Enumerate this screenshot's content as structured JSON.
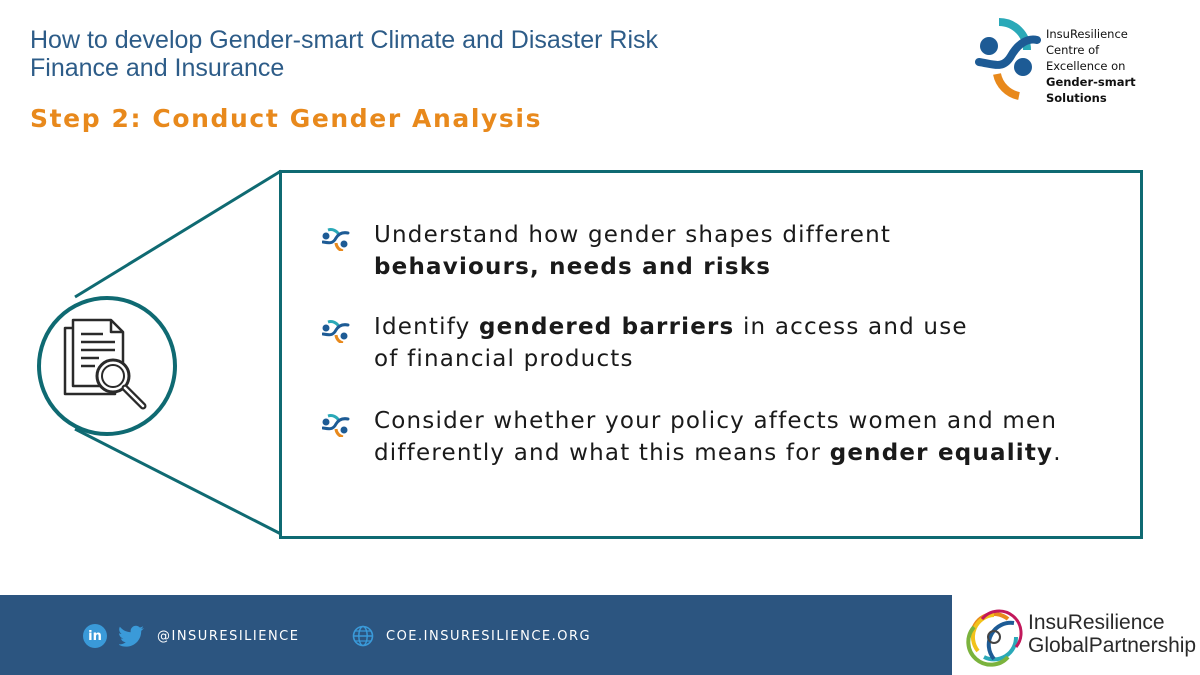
{
  "header": {
    "title_line1": "How to develop Gender-smart Climate and Disaster Risk",
    "title_line2": "Finance and Insurance",
    "step": "Step 2: Conduct Gender Analysis"
  },
  "logo_top": {
    "lines": [
      "InsuResilience",
      "Centre of",
      "Excellence on"
    ],
    "bold_lines": [
      "Gender-smart",
      "Solutions"
    ],
    "icon": "coe-logo-icon"
  },
  "illustration": {
    "icon": "document-magnifier-icon"
  },
  "bullets": [
    {
      "icon": "coe-bullet-icon",
      "line1": "Understand how gender shapes different",
      "line2_bold": "behaviours, needs and risks"
    },
    {
      "icon": "coe-bullet-icon",
      "line1_pre": "Identify ",
      "line1_bold": "gendered barriers",
      "line1_post": " in access and use",
      "line2": "of financial products"
    },
    {
      "icon": "coe-bullet-icon",
      "line1": "Consider whether your policy affects women and men",
      "line2_pre": "differently and what this means for ",
      "line2_bold": "gender equality",
      "line2_post": "."
    }
  ],
  "footer": {
    "linkedin_icon_text": "in",
    "handle": "@INSURESILIENCE",
    "website": "COE.INSURESILIENCE.ORG",
    "partner_line1": "InsuResilience",
    "partner_line2": "GlobalPartnership"
  },
  "colors": {
    "title_blue": "#2d5c88",
    "step_orange": "#e8891c",
    "teal": "#0f6a72",
    "footer_blue": "#2c5580",
    "logo_blue": "#1d5b95",
    "logo_cyan": "#2aa9b8"
  }
}
